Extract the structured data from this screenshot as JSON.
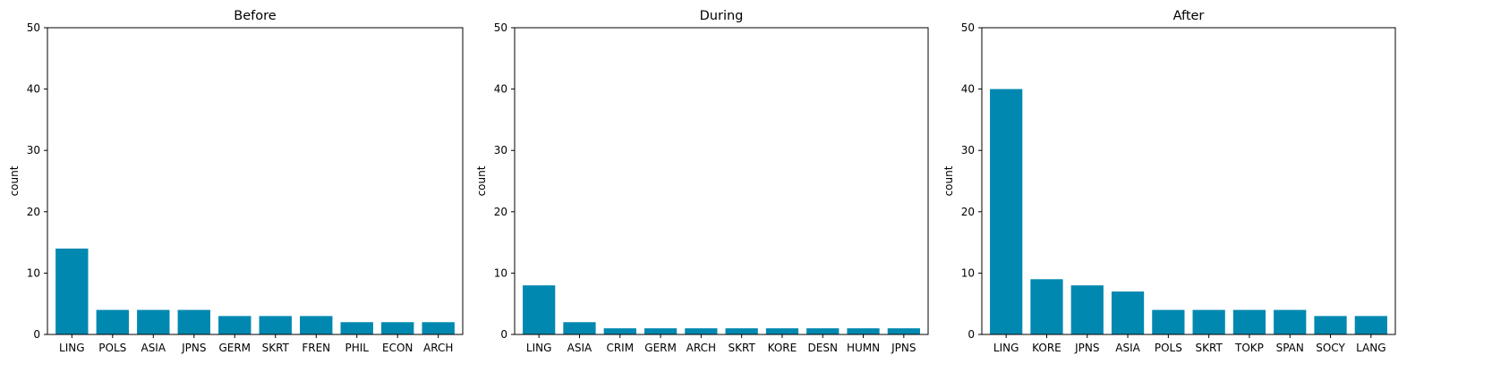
{
  "chart_data": [
    {
      "type": "bar",
      "title": "Before",
      "xlabel": "",
      "ylabel": "count",
      "ylim": [
        0,
        50
      ],
      "yticks": [
        "0",
        "10",
        "20",
        "30",
        "40",
        "50"
      ],
      "categories": [
        "LING",
        "POLS",
        "ASIA",
        "JPNS",
        "GERM",
        "SKRT",
        "FREN",
        "PHIL",
        "ECON",
        "ARCH"
      ],
      "values": [
        14,
        4,
        4,
        4,
        3,
        3,
        3,
        2,
        2,
        2
      ],
      "color": "#0088b0",
      "grid": false
    },
    {
      "type": "bar",
      "title": "During",
      "xlabel": "",
      "ylabel": "count",
      "ylim": [
        0,
        50
      ],
      "yticks": [
        "0",
        "10",
        "20",
        "30",
        "40",
        "50"
      ],
      "categories": [
        "LING",
        "ASIA",
        "CRIM",
        "GERM",
        "ARCH",
        "SKRT",
        "KORE",
        "DESN",
        "HUMN",
        "JPNS"
      ],
      "values": [
        8,
        2,
        1,
        1,
        1,
        1,
        1,
        1,
        1,
        1
      ],
      "color": "#0088b0",
      "grid": false
    },
    {
      "type": "bar",
      "title": "After",
      "xlabel": "",
      "ylabel": "count",
      "ylim": [
        0,
        50
      ],
      "yticks": [
        "0",
        "10",
        "20",
        "30",
        "40",
        "50"
      ],
      "categories": [
        "LING",
        "KORE",
        "JPNS",
        "ASIA",
        "POLS",
        "SKRT",
        "TOKP",
        "SPAN",
        "SOCY",
        "LANG"
      ],
      "values": [
        40,
        9,
        8,
        7,
        4,
        4,
        4,
        4,
        3,
        3
      ],
      "color": "#0088b0",
      "grid": false
    }
  ]
}
